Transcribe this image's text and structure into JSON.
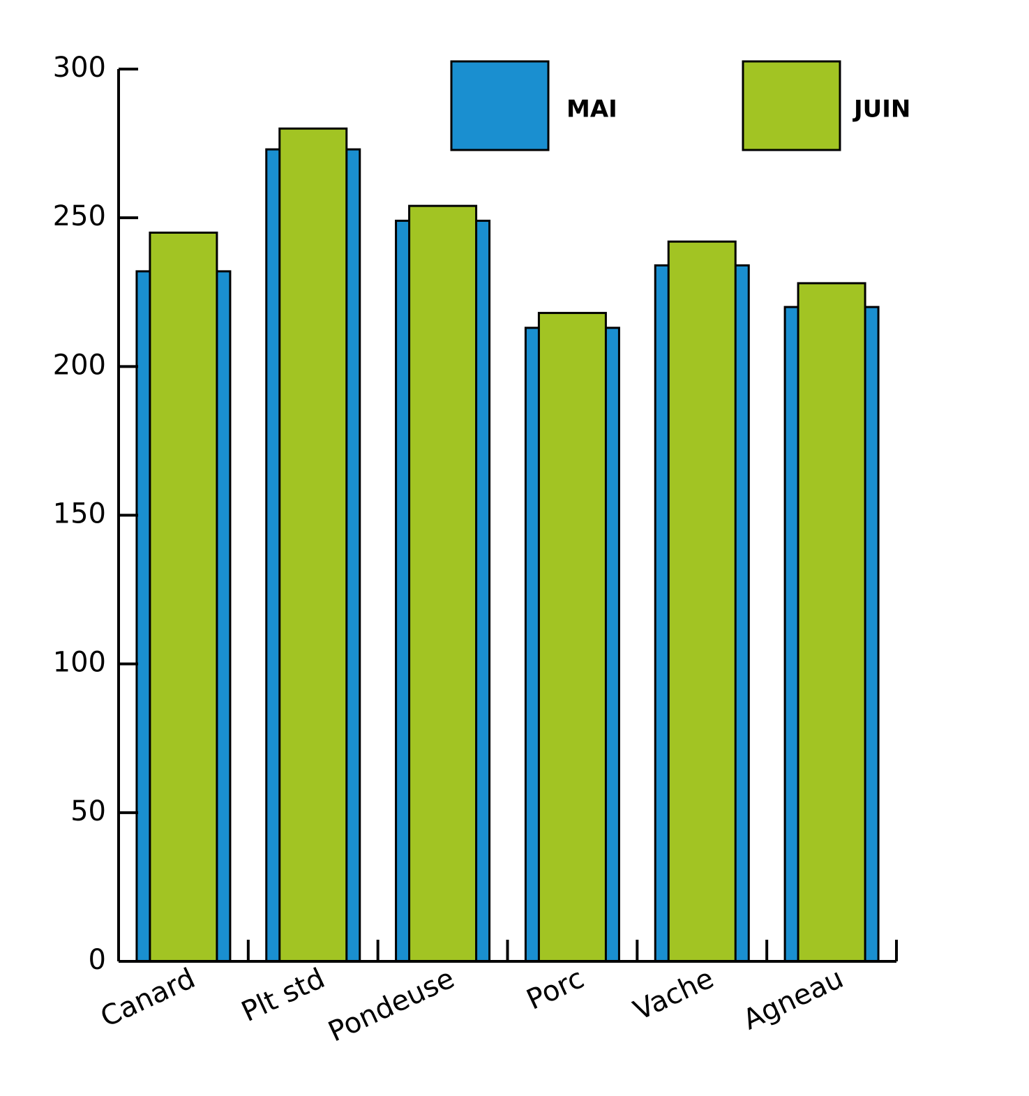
{
  "chart_data": {
    "type": "bar",
    "categories": [
      "Canard",
      "Plt std",
      "Pondeuse",
      "Porc",
      "Vache",
      "Agneau"
    ],
    "series": [
      {
        "name": "MAI",
        "color": "#1a8fd0",
        "values": [
          232,
          273,
          249,
          213,
          234,
          220
        ]
      },
      {
        "name": "JUIN",
        "color": "#a2c423",
        "values": [
          245,
          280,
          254,
          218,
          242,
          228
        ]
      }
    ],
    "ylim": [
      0,
      300
    ],
    "yticks": [
      0,
      50,
      100,
      150,
      200,
      250,
      300
    ]
  }
}
